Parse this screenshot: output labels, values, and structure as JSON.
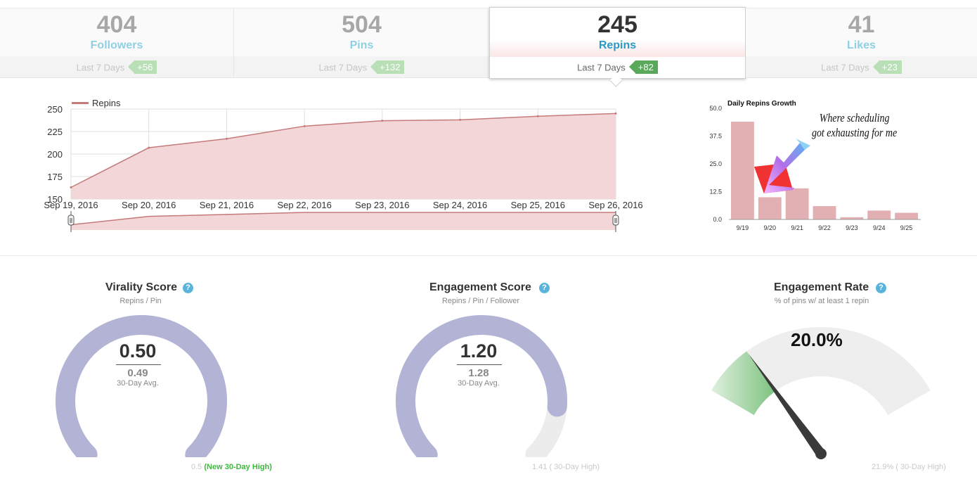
{
  "stats": [
    {
      "value": "404",
      "label": "Followers",
      "period": "Last 7 Days",
      "delta": "+56",
      "active": false
    },
    {
      "value": "504",
      "label": "Pins",
      "period": "Last 7 Days",
      "delta": "+132",
      "active": false
    },
    {
      "value": "245",
      "label": "Repins",
      "period": "Last 7 Days",
      "delta": "+82",
      "active": true
    },
    {
      "value": "41",
      "label": "Likes",
      "period": "Last 7 Days",
      "delta": "+23",
      "active": false
    }
  ],
  "colors": {
    "accent": "#2a9ac3",
    "badge_active": "#5aa85a",
    "badge_inactive": "#b9dfb7",
    "area_fill": "#f2d6d8",
    "area_line": "#c57a7a",
    "bar": "#e2b0b2",
    "gauge": "#b3b3d6",
    "gauge_green": "#8ecf90"
  },
  "chart_data": [
    {
      "type": "area",
      "legend": "Repins",
      "x": [
        "Sep 19, 2016",
        "Sep 20, 2016",
        "Sep 21, 2016",
        "Sep 22, 2016",
        "Sep 23, 2016",
        "Sep 24, 2016",
        "Sep 25, 2016",
        "Sep 26, 2016"
      ],
      "y": [
        163,
        207,
        217,
        231,
        237,
        238,
        242,
        245
      ],
      "yticks": [
        150,
        175,
        200,
        225,
        250
      ],
      "ylim": [
        150,
        250
      ],
      "grid": true,
      "navigator": true
    },
    {
      "type": "bar",
      "title": "Daily Repins Growth",
      "categories": [
        "9/19",
        "9/20",
        "9/21",
        "9/22",
        "9/23",
        "9/24",
        "9/25"
      ],
      "values": [
        44,
        10,
        14,
        6,
        1,
        4,
        3
      ],
      "yticks": [
        "0.0",
        "12.5",
        "25.0",
        "37.5",
        "50.0"
      ],
      "ylim": [
        0,
        50
      ]
    }
  ],
  "annotation": {
    "line1": "Where scheduling",
    "line2": "got exhausting for me"
  },
  "gauges": {
    "virality": {
      "title": "Virality Score",
      "subtitle": "Repins / Pin",
      "value": "0.50",
      "avg": "0.49",
      "avg_label": "30-Day Avg.",
      "foot_value": "0.5",
      "foot_note": "(New 30-Day High)",
      "fraction": 1.0
    },
    "engagement": {
      "title": "Engagement Score",
      "subtitle": "Repins / Pin / Follower",
      "value": "1.20",
      "avg": "1.28",
      "avg_label": "30-Day Avg.",
      "foot": "1.41 ( 30-Day High)",
      "fraction": 0.85
    },
    "rate": {
      "title": "Engagement Rate",
      "subtitle": "% of pins w/ at least 1 repin",
      "value": "20.0%",
      "foot": "21.9% ( 30-Day High)",
      "fraction": 0.2
    }
  },
  "help_icon": "?"
}
